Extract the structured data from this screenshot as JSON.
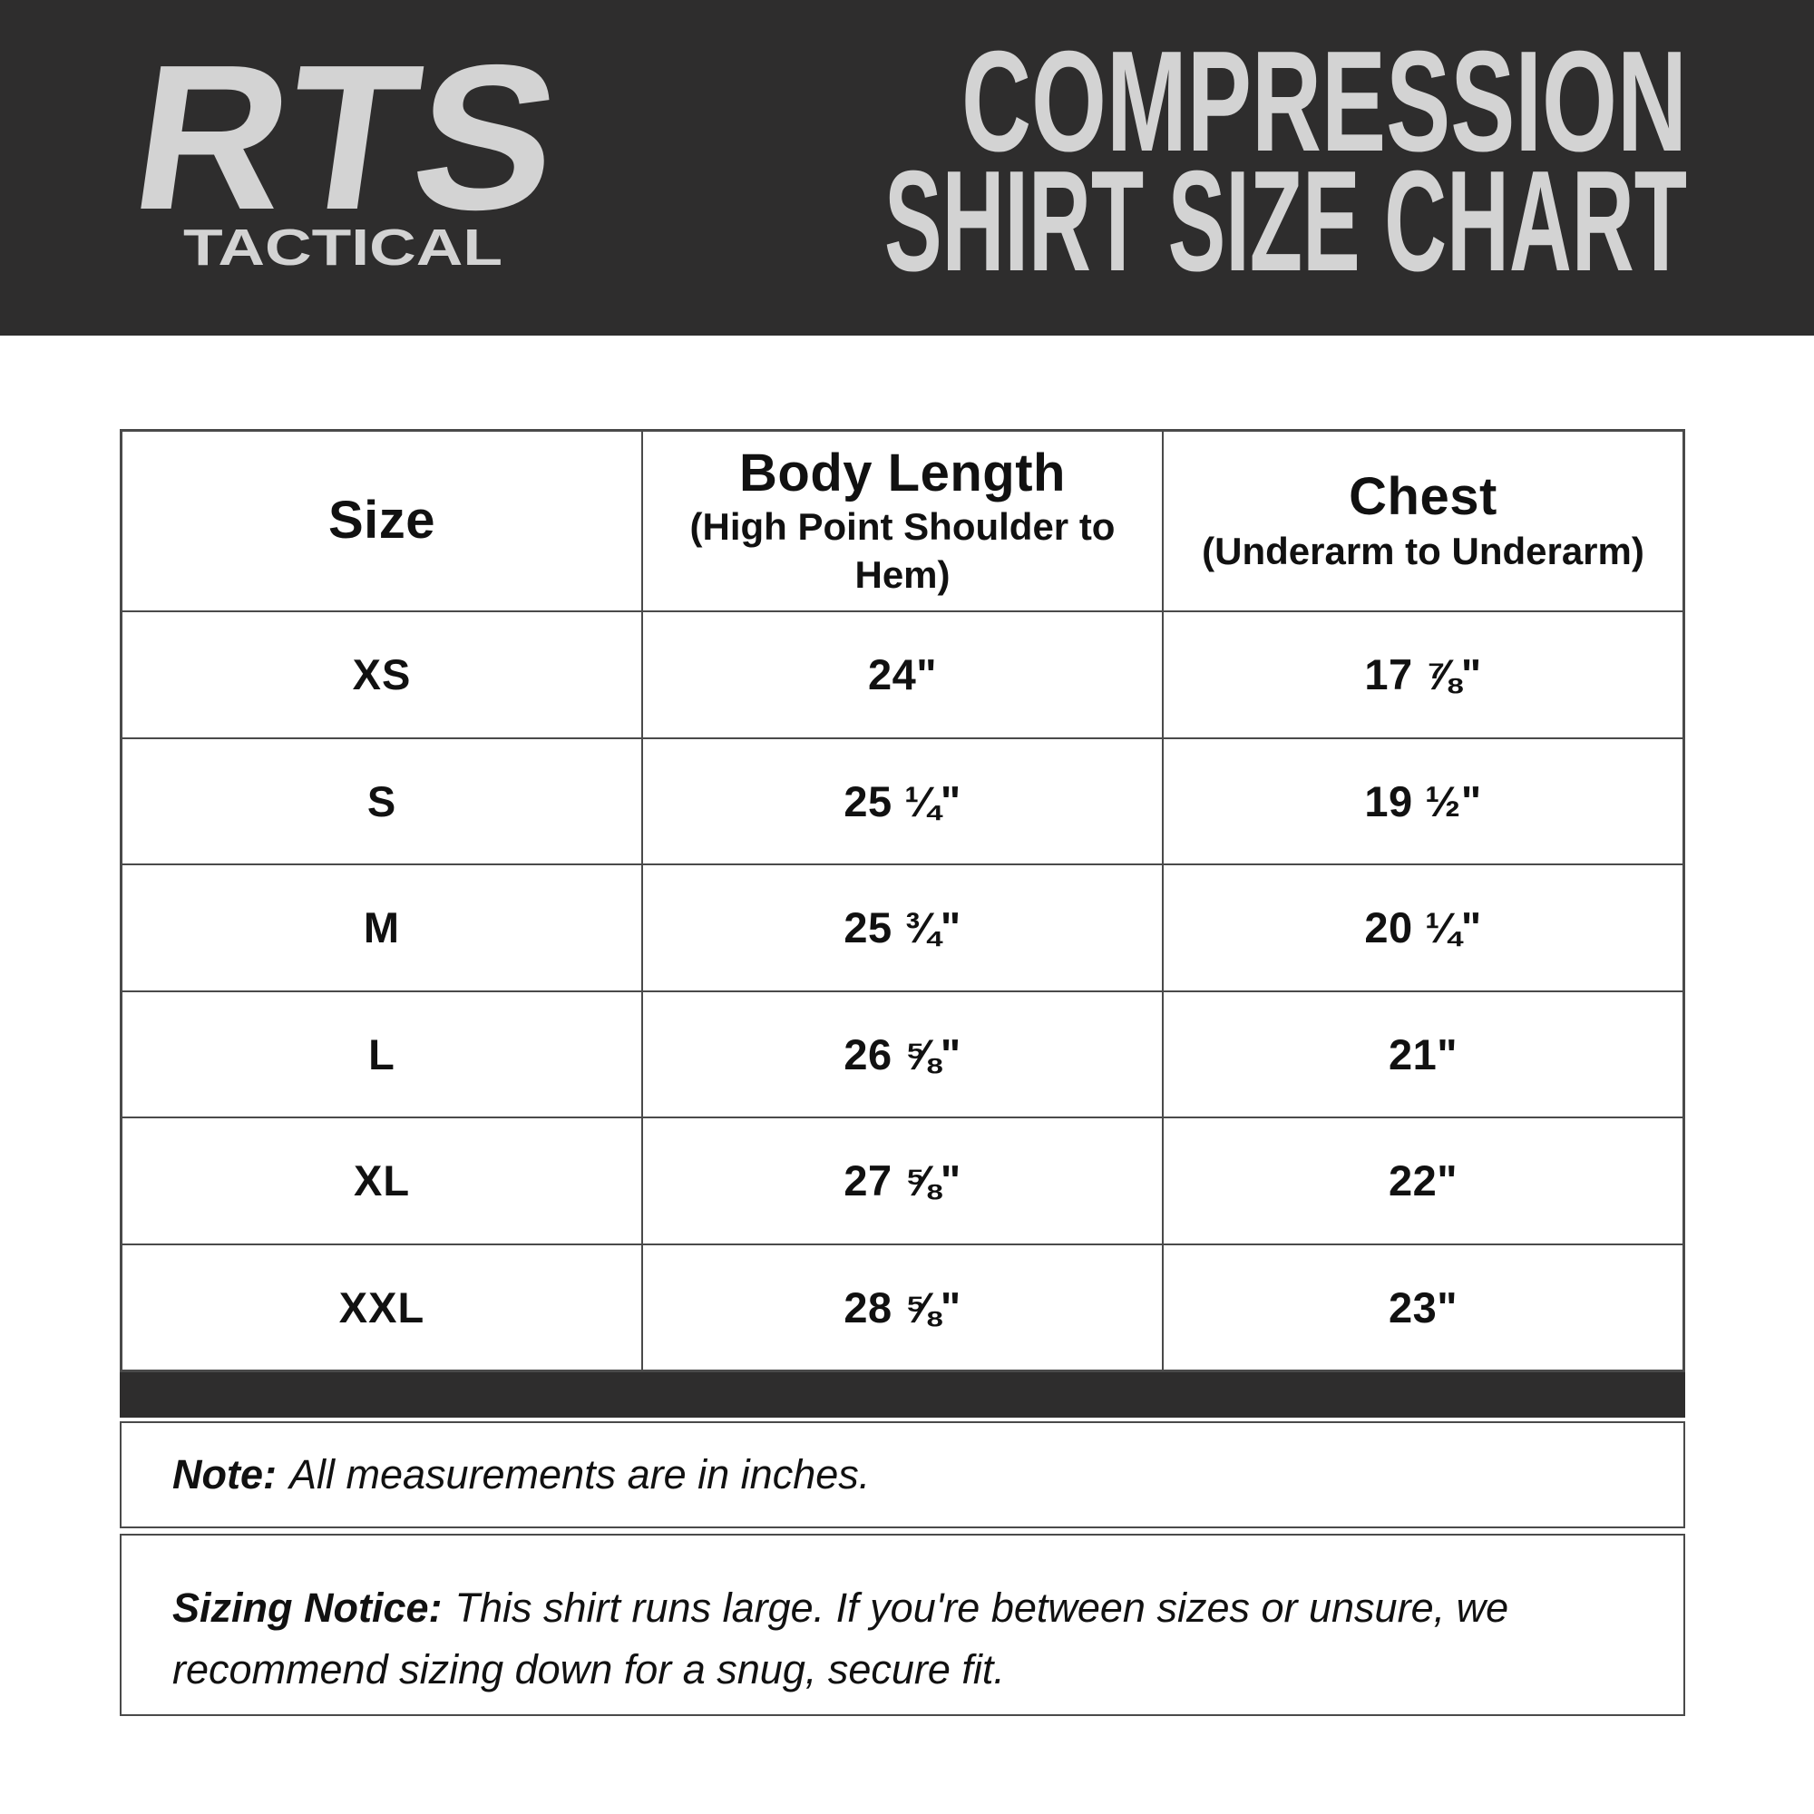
{
  "brand": {
    "logo_text": "RTS",
    "logo_subtext": "TACTICAL"
  },
  "header": {
    "title_line1": "COMPRESSION",
    "title_line2": "SHIRT SIZE CHART"
  },
  "table": {
    "columns": [
      {
        "label": "Size",
        "sublabel": ""
      },
      {
        "label": "Body Length",
        "sublabel": "(High Point Shoulder to Hem)"
      },
      {
        "label": "Chest",
        "sublabel": "(Underarm to Underarm)"
      }
    ],
    "rows": [
      {
        "size": "XS",
        "body_length": "24\"",
        "chest": "17 ⅞\""
      },
      {
        "size": "S",
        "body_length": "25 ¼\"",
        "chest": "19 ½\""
      },
      {
        "size": "M",
        "body_length": "25 ¾\"",
        "chest": "20 ¼\""
      },
      {
        "size": "L",
        "body_length": "26 ⅝\"",
        "chest": "21\""
      },
      {
        "size": "XL",
        "body_length": "27 ⅝\"",
        "chest": "22\""
      },
      {
        "size": "XXL",
        "body_length": "28 ⅝\"",
        "chest": "23\""
      }
    ]
  },
  "notes": {
    "note_label": "Note:",
    "note_text": "All measurements are in inches.",
    "sizing_label": "Sizing Notice:",
    "sizing_text": "This shirt runs large. If you're between sizes or unsure, we recommend sizing down for a snug, secure fit."
  },
  "colors": {
    "band_background": "#2e2d2d",
    "logo_gray": "#d3d3d3",
    "table_border": "#4a4a4a",
    "text_black": "#111111"
  }
}
